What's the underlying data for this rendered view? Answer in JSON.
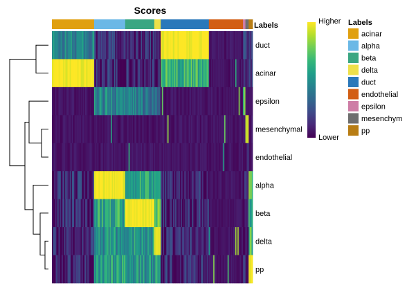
{
  "chart_data": {
    "type": "heatmap",
    "title": "Scores",
    "annotation_title": "Labels",
    "row_labels": [
      "duct",
      "acinar",
      "epsilon",
      "mesenchymal",
      "endothelial",
      "alpha",
      "beta",
      "delta",
      "pp"
    ],
    "column_groups": [
      {
        "label": "acinar",
        "fraction": 0.21,
        "color": "#E0A010"
      },
      {
        "label": "alpha",
        "fraction": 0.155,
        "color": "#6BB8E6"
      },
      {
        "label": "beta",
        "fraction": 0.145,
        "color": "#3AA682"
      },
      {
        "label": "delta",
        "fraction": 0.032,
        "color": "#EEE04A"
      },
      {
        "label": "duct",
        "fraction": 0.24,
        "color": "#2A78BA"
      },
      {
        "label": "endothelial",
        "fraction": 0.17,
        "color": "#D25E14"
      },
      {
        "label": "epsilon",
        "fraction": 0.012,
        "color": "#CE7DA6"
      },
      {
        "label": "mesenchym",
        "fraction": 0.016,
        "color": "#6E6E6E"
      },
      {
        "label": "pp",
        "fraction": 0.02,
        "color": "#B87D14"
      }
    ],
    "cell_scores": [
      [
        0.45,
        0.12,
        0.12,
        0.1,
        1.0,
        0.05,
        0.25,
        0.15,
        0.12
      ],
      [
        1.0,
        0.1,
        0.1,
        0.1,
        0.65,
        0.05,
        0.1,
        0.1,
        0.1
      ],
      [
        0.05,
        0.45,
        0.4,
        0.35,
        0.05,
        0.05,
        0.7,
        0.05,
        0.05
      ],
      [
        0.05,
        0.05,
        0.05,
        0.05,
        0.05,
        0.05,
        0.05,
        0.95,
        0.05
      ],
      [
        0.05,
        0.05,
        0.05,
        0.05,
        0.05,
        0.05,
        0.05,
        0.1,
        0.05
      ],
      [
        0.12,
        1.0,
        0.6,
        0.55,
        0.1,
        0.05,
        0.1,
        0.1,
        0.7
      ],
      [
        0.1,
        0.6,
        1.0,
        0.7,
        0.1,
        0.05,
        0.1,
        0.1,
        0.65
      ],
      [
        0.1,
        0.5,
        0.55,
        1.0,
        0.1,
        0.05,
        0.1,
        0.1,
        0.65
      ],
      [
        0.1,
        0.55,
        0.5,
        0.55,
        0.1,
        0.05,
        0.1,
        0.1,
        1.0
      ]
    ],
    "color_scale": {
      "high_label": "Higher",
      "low_label": "Lower",
      "colors": [
        "#440154",
        "#482878",
        "#3E4A89",
        "#31688E",
        "#26828E",
        "#1F9E89",
        "#35B779",
        "#6DCD59",
        "#B4DE2C",
        "#FDE725"
      ]
    },
    "dendrogram_order": [
      "duct",
      "acinar",
      "epsilon",
      "mesenchymal",
      "endothelial",
      "alpha",
      "beta",
      "delta",
      "pp"
    ]
  }
}
